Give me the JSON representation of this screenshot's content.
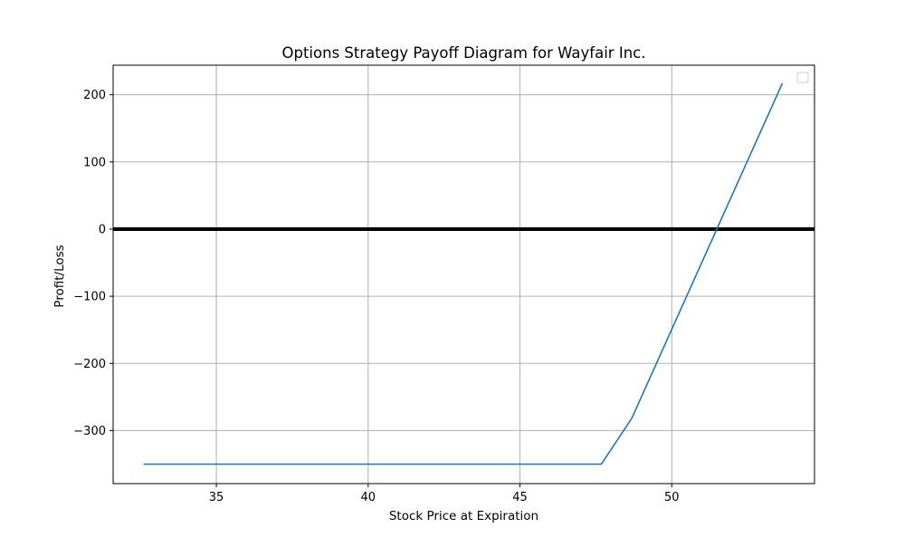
{
  "chart_data": {
    "type": "line",
    "title": "Options Strategy Payoff Diagram for Wayfair Inc.",
    "xlabel": "Stock Price at Expiration",
    "ylabel": "Profit/Loss",
    "xlim": [
      31.6,
      54.7
    ],
    "ylim": [
      -379,
      244
    ],
    "x_ticks": [
      35,
      40,
      45,
      50
    ],
    "y_ticks": [
      -300,
      -200,
      -100,
      0,
      100,
      200
    ],
    "x_tick_labels": [
      "35",
      "40",
      "45",
      "50"
    ],
    "y_tick_labels": [
      "−300",
      "−200",
      "−100",
      "0",
      "100",
      "200"
    ],
    "grid": true,
    "legend": "upper right (empty)",
    "zero_line": {
      "y": 0,
      "color": "#000000"
    },
    "series": [
      {
        "color": "#1f77b4",
        "x": [
          32.6,
          47.68,
          48.68,
          53.64
        ],
        "y": [
          -350,
          -350,
          -282,
          217
        ]
      }
    ]
  }
}
